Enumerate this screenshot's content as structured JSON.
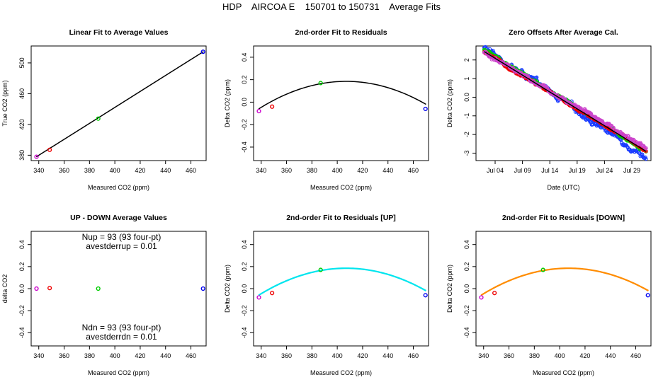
{
  "figure": {
    "title": "HDP    AIRCOA E    150701 to 150731    Average Fits"
  },
  "colors": {
    "purple": "#cc00cc",
    "red": "#ee0000",
    "green": "#00cc00",
    "blue": "#0000ee",
    "black": "#000000",
    "cyan": "#00e5ee",
    "orange": "#ff8c00",
    "offset_purple": "#cc44cc",
    "offset_blue": "#1a3cff"
  },
  "chart_data": [
    {
      "id": "p1",
      "type": "scatter",
      "title": "Linear Fit to Average Values",
      "xlabel": "Measured CO2 (ppm)",
      "ylabel": "True CO2 (ppm)",
      "xlim": [
        334,
        472
      ],
      "ylim": [
        373,
        522
      ],
      "xticks": [
        340,
        360,
        380,
        400,
        420,
        440,
        460
      ],
      "yticks": [
        380,
        420,
        460,
        500
      ],
      "points": [
        {
          "x": 338.2,
          "y": 378.0,
          "color": "purple"
        },
        {
          "x": 348.6,
          "y": 387.0,
          "color": "red"
        },
        {
          "x": 386.9,
          "y": 427.5,
          "color": "green"
        },
        {
          "x": 469.6,
          "y": 514.5,
          "color": "blue"
        }
      ],
      "fit": {
        "type": "line",
        "x": [
          338,
          470
        ],
        "y": [
          377.8,
          514.8
        ],
        "color": "black"
      }
    },
    {
      "id": "p2",
      "type": "scatter",
      "title": "2nd-order Fit to Residuals",
      "xlabel": "Measured CO2 (ppm)",
      "ylabel": "Delta CO2 (ppm)",
      "xlim": [
        334,
        472
      ],
      "ylim": [
        -0.52,
        0.5
      ],
      "xticks": [
        340,
        360,
        380,
        400,
        420,
        440,
        460
      ],
      "yticks": [
        -0.4,
        -0.2,
        0.0,
        0.2,
        0.4
      ],
      "points": [
        {
          "x": 338.2,
          "y": -0.08,
          "color": "purple"
        },
        {
          "x": 348.6,
          "y": -0.04,
          "color": "red"
        },
        {
          "x": 386.9,
          "y": 0.17,
          "color": "green"
        },
        {
          "x": 469.6,
          "y": -0.06,
          "color": "blue"
        }
      ],
      "fit": {
        "type": "quadratic",
        "vertex_x": 407,
        "vertex_y": 0.185,
        "a": -5.15e-05,
        "xrange": [
          338,
          470
        ],
        "color": "black"
      }
    },
    {
      "id": "p3",
      "type": "scatter",
      "title": "Zero Offsets After Average Cal.",
      "xlabel": "Date (UTC)",
      "ylabel": "Delta CO2 (ppm)",
      "xlim": [
        -0.5,
        31.5
      ],
      "ylim": [
        -3.4,
        2.75
      ],
      "xticks": [
        3,
        8,
        13,
        18,
        23,
        28
      ],
      "xticklabels": [
        "Jul 04",
        "Jul 09",
        "Jul 14",
        "Jul 19",
        "Jul 24",
        "Jul 29"
      ],
      "yticks": [
        -3,
        -2,
        -1,
        0,
        1,
        2
      ],
      "series": [
        {
          "name": "blue",
          "color": "offset_blue",
          "start": 2.65,
          "end": -3.2,
          "noise": 0.17
        },
        {
          "name": "green",
          "color": "green",
          "start": 2.55,
          "end": -2.9,
          "noise": 0.07
        },
        {
          "name": "red",
          "color": "red",
          "start": 2.4,
          "end": -2.85,
          "noise": 0.07
        },
        {
          "name": "purple",
          "color": "offset_purple",
          "start": 2.35,
          "end": -2.7,
          "noise": 0.12
        }
      ],
      "x_start": 1.0,
      "x_end": 30.6,
      "trend": {
        "y_start": 2.45,
        "y_end": -2.9,
        "color": "black"
      }
    },
    {
      "id": "p4",
      "type": "scatter",
      "title": "UP - DOWN Average Values",
      "xlabel": "Measured CO2 (ppm)",
      "ylabel": "delta CO2",
      "xlim": [
        334,
        472
      ],
      "ylim": [
        -0.52,
        0.52
      ],
      "xticks": [
        340,
        360,
        380,
        400,
        420,
        440,
        460
      ],
      "yticks": [
        -0.4,
        -0.2,
        0.0,
        0.2,
        0.4
      ],
      "points": [
        {
          "x": 338.2,
          "y": 0.0,
          "color": "purple"
        },
        {
          "x": 348.6,
          "y": 0.005,
          "color": "red"
        },
        {
          "x": 386.9,
          "y": 0.0,
          "color": "green"
        },
        {
          "x": 469.6,
          "y": 0.0,
          "color": "blue"
        }
      ],
      "annotations": {
        "nup": "Nup = 93 (93 four-pt)",
        "avestderrup": "avestderrup =  0.01",
        "ndn": "Ndn = 93 (93 four-pt)",
        "avestderrdn": "avestderrdn =  0.01"
      }
    },
    {
      "id": "p5",
      "type": "scatter",
      "title": "2nd-order Fit to Residuals [UP]",
      "xlabel": "Measured CO2 (ppm)",
      "ylabel": "Delta CO2 (ppm)",
      "xlim": [
        334,
        472
      ],
      "ylim": [
        -0.52,
        0.52
      ],
      "xticks": [
        340,
        360,
        380,
        400,
        420,
        440,
        460
      ],
      "yticks": [
        -0.4,
        -0.2,
        0.0,
        0.2,
        0.4
      ],
      "points": [
        {
          "x": 338.2,
          "y": -0.08,
          "color": "purple"
        },
        {
          "x": 348.6,
          "y": -0.04,
          "color": "red"
        },
        {
          "x": 386.9,
          "y": 0.17,
          "color": "green"
        },
        {
          "x": 469.6,
          "y": -0.06,
          "color": "blue"
        }
      ],
      "fit": {
        "type": "quadratic",
        "vertex_x": 407,
        "vertex_y": 0.185,
        "a": -5.15e-05,
        "xrange": [
          338,
          470
        ],
        "color": "cyan"
      }
    },
    {
      "id": "p6",
      "type": "scatter",
      "title": "2nd-order Fit to Residuals [DOWN]",
      "xlabel": "Measured CO2 (ppm)",
      "ylabel": "Delta CO2 (ppm)",
      "xlim": [
        334,
        472
      ],
      "ylim": [
        -0.52,
        0.52
      ],
      "xticks": [
        340,
        360,
        380,
        400,
        420,
        440,
        460
      ],
      "yticks": [
        -0.4,
        -0.2,
        0.0,
        0.2,
        0.4
      ],
      "points": [
        {
          "x": 338.2,
          "y": -0.08,
          "color": "purple"
        },
        {
          "x": 348.6,
          "y": -0.04,
          "color": "red"
        },
        {
          "x": 386.9,
          "y": 0.17,
          "color": "green"
        },
        {
          "x": 469.6,
          "y": -0.06,
          "color": "blue"
        }
      ],
      "fit": {
        "type": "quadratic",
        "vertex_x": 407,
        "vertex_y": 0.185,
        "a": -5.15e-05,
        "xrange": [
          338,
          470
        ],
        "color": "orange"
      }
    }
  ]
}
